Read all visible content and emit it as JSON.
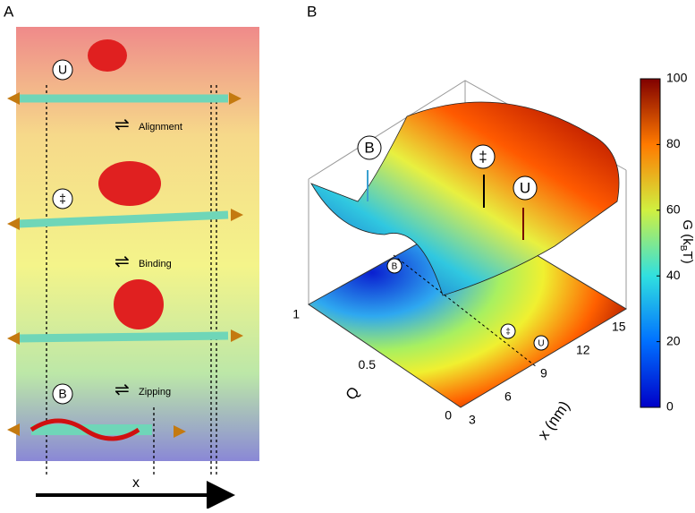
{
  "panel_a": {
    "label": "A",
    "states": [
      "U",
      "‡",
      "B"
    ],
    "steps": [
      "Alignment",
      "Binding",
      "Zipping"
    ],
    "axis_label": "x"
  },
  "panel_b": {
    "label": "B",
    "surface_markers": [
      "B",
      "‡",
      "U"
    ],
    "contour_markers": [
      "B",
      "‡",
      "U"
    ],
    "q_axis": {
      "label": "Q",
      "lim": [
        0,
        1
      ],
      "ticks": [
        0,
        0.5,
        1
      ]
    },
    "x_axis": {
      "label": "x (nm)",
      "lim": [
        3,
        15
      ],
      "ticks": [
        3,
        6,
        9,
        12,
        15
      ]
    },
    "colorbar": {
      "label": "G (k",
      "label_sub": "B",
      "label_end": "T)",
      "lim": [
        0,
        100
      ],
      "ticks": [
        0,
        20,
        40,
        60,
        80,
        100
      ]
    }
  }
}
